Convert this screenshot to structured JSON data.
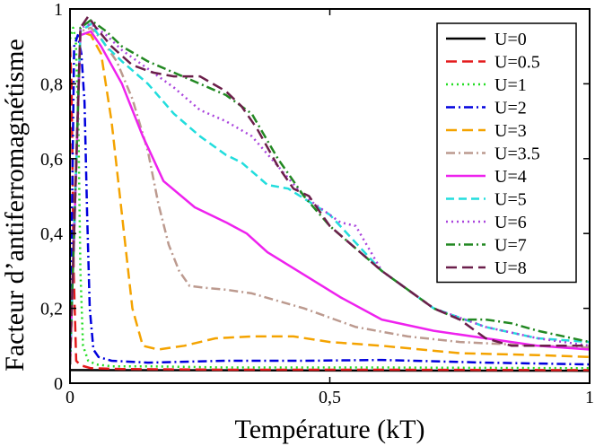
{
  "chart_data": {
    "type": "line",
    "title": "",
    "xlabel": "Température (kT)",
    "ylabel": "Facteur d’antiferromagnétisme",
    "xlim": [
      0,
      1
    ],
    "ylim": [
      0,
      1
    ],
    "x_ticks": [
      0,
      0.5,
      1
    ],
    "x_tick_labels": [
      "0",
      "0,5",
      "1"
    ],
    "y_ticks": [
      0,
      0.2,
      0.4,
      0.6,
      0.8,
      1
    ],
    "y_tick_labels": [
      "0",
      "0,2",
      "0,4",
      "0,6",
      "0,8",
      "1"
    ],
    "grid": false,
    "legend_position": "top-right",
    "series": [
      {
        "name": "U=0",
        "color": "#000000",
        "dash": "solid",
        "x": [
          0,
          1
        ],
        "y": [
          0.035,
          0.033
        ]
      },
      {
        "name": "U=0.5",
        "color": "#e41a1c",
        "dash": "longdash",
        "x": [
          0.0,
          0.003,
          0.007,
          0.012,
          0.02,
          0.04,
          0.1,
          0.3,
          0.6,
          1.0
        ],
        "y": [
          0.9,
          0.8,
          0.3,
          0.06,
          0.048,
          0.04,
          0.038,
          0.036,
          0.036,
          0.035
        ]
      },
      {
        "name": "U=1",
        "color": "#22dd22",
        "dash": "dotted",
        "x": [
          0.0,
          0.006,
          0.011,
          0.016,
          0.02,
          0.025,
          0.035,
          0.05,
          0.08,
          0.15,
          0.3,
          0.6,
          1.0
        ],
        "y": [
          0.92,
          0.95,
          0.92,
          0.7,
          0.3,
          0.1,
          0.06,
          0.05,
          0.045,
          0.045,
          0.042,
          0.042,
          0.04
        ]
      },
      {
        "name": "U=2",
        "color": "#0000dd",
        "dash": "dashdot",
        "x": [
          0.0,
          0.008,
          0.015,
          0.022,
          0.028,
          0.033,
          0.038,
          0.045,
          0.055,
          0.08,
          0.15,
          0.3,
          0.45,
          0.6,
          0.8,
          1.0
        ],
        "y": [
          0.05,
          0.9,
          0.93,
          0.88,
          0.75,
          0.45,
          0.2,
          0.09,
          0.07,
          0.06,
          0.055,
          0.06,
          0.06,
          0.062,
          0.055,
          0.05
        ]
      },
      {
        "name": "U=3",
        "color": "#f4a300",
        "dash": "longdash",
        "x": [
          0.0,
          0.02,
          0.04,
          0.06,
          0.08,
          0.1,
          0.12,
          0.14,
          0.17,
          0.22,
          0.28,
          0.35,
          0.43,
          0.5,
          0.6,
          0.75,
          0.9,
          1.0
        ],
        "y": [
          0.05,
          0.94,
          0.93,
          0.88,
          0.7,
          0.45,
          0.2,
          0.1,
          0.09,
          0.1,
          0.12,
          0.125,
          0.125,
          0.11,
          0.1,
          0.08,
          0.075,
          0.07
        ]
      },
      {
        "name": "U=3.5",
        "color": "#bc9a8f",
        "dash": "dashdot",
        "x": [
          0.0,
          0.02,
          0.04,
          0.06,
          0.09,
          0.12,
          0.15,
          0.17,
          0.19,
          0.21,
          0.23,
          0.26,
          0.3,
          0.35,
          0.45,
          0.55,
          0.65,
          0.75,
          0.9,
          1.0
        ],
        "y": [
          0.05,
          0.94,
          0.95,
          0.92,
          0.86,
          0.76,
          0.62,
          0.48,
          0.37,
          0.3,
          0.26,
          0.255,
          0.25,
          0.24,
          0.2,
          0.15,
          0.125,
          0.11,
          0.1,
          0.095
        ]
      },
      {
        "name": "U=4",
        "color": "#ee22ee",
        "dash": "solid",
        "x": [
          0.0,
          0.02,
          0.04,
          0.06,
          0.1,
          0.14,
          0.18,
          0.24,
          0.3,
          0.34,
          0.38,
          0.45,
          0.52,
          0.6,
          0.7,
          0.8,
          0.9,
          1.0
        ],
        "y": [
          0.05,
          0.93,
          0.94,
          0.9,
          0.8,
          0.66,
          0.54,
          0.47,
          0.43,
          0.4,
          0.35,
          0.29,
          0.23,
          0.17,
          0.14,
          0.12,
          0.1,
          0.09
        ]
      },
      {
        "name": "U=5",
        "color": "#22dddd",
        "dash": "dashed",
        "x": [
          0.0,
          0.02,
          0.04,
          0.07,
          0.1,
          0.15,
          0.2,
          0.25,
          0.3,
          0.33,
          0.38,
          0.42,
          0.5,
          0.6,
          0.7,
          0.8,
          0.9,
          1.0
        ],
        "y": [
          0.05,
          0.94,
          0.96,
          0.9,
          0.86,
          0.8,
          0.72,
          0.66,
          0.61,
          0.59,
          0.53,
          0.52,
          0.45,
          0.3,
          0.2,
          0.15,
          0.12,
          0.11
        ]
      },
      {
        "name": "U=6",
        "color": "#aa44dd",
        "dash": "dotted",
        "x": [
          0.0,
          0.02,
          0.04,
          0.07,
          0.1,
          0.15,
          0.2,
          0.25,
          0.3,
          0.35,
          0.4,
          0.45,
          0.52,
          0.55,
          0.6,
          0.7,
          0.8,
          0.9,
          1.0
        ],
        "y": [
          0.05,
          0.95,
          0.96,
          0.93,
          0.89,
          0.84,
          0.79,
          0.73,
          0.7,
          0.66,
          0.58,
          0.5,
          0.43,
          0.42,
          0.3,
          0.2,
          0.15,
          0.12,
          0.1
        ]
      },
      {
        "name": "U=7",
        "color": "#228822",
        "dash": "dashdot",
        "x": [
          0.0,
          0.02,
          0.04,
          0.07,
          0.1,
          0.15,
          0.2,
          0.25,
          0.3,
          0.35,
          0.4,
          0.45,
          0.5,
          0.6,
          0.7,
          0.75,
          0.8,
          0.85,
          0.9,
          1.0
        ],
        "y": [
          0.05,
          0.95,
          0.97,
          0.94,
          0.9,
          0.86,
          0.83,
          0.8,
          0.77,
          0.72,
          0.6,
          0.5,
          0.42,
          0.3,
          0.2,
          0.17,
          0.17,
          0.16,
          0.14,
          0.11
        ]
      },
      {
        "name": "U=8",
        "color": "#6b1f4a",
        "dash": "longdash",
        "x": [
          0.0,
          0.02,
          0.035,
          0.05,
          0.08,
          0.12,
          0.16,
          0.2,
          0.25,
          0.3,
          0.33,
          0.36,
          0.4,
          0.43,
          0.46,
          0.5,
          0.6,
          0.7,
          0.75,
          0.8,
          0.85,
          0.9,
          1.0
        ],
        "y": [
          0.05,
          0.95,
          0.98,
          0.95,
          0.9,
          0.85,
          0.83,
          0.82,
          0.82,
          0.78,
          0.74,
          0.68,
          0.58,
          0.52,
          0.5,
          0.42,
          0.3,
          0.2,
          0.17,
          0.12,
          0.1,
          0.1,
          0.1
        ]
      }
    ]
  }
}
